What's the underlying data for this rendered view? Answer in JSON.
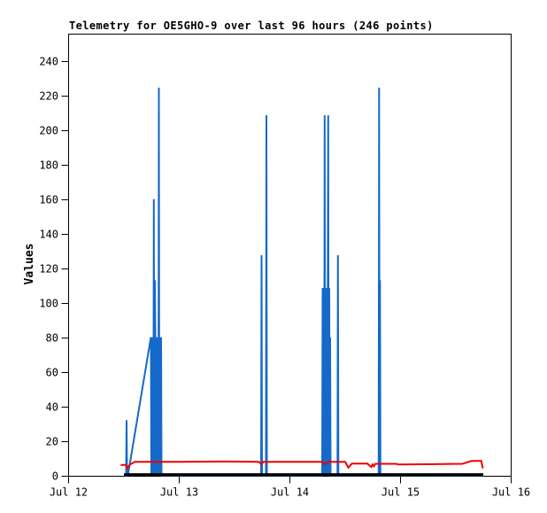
{
  "title": "Telemetry for OE5GHO-9 over last 96 hours (246 points)",
  "y_axis_label": "Values",
  "colors": {
    "background": "#ffffff",
    "border": "#000000",
    "series_blue": "#1569c8",
    "series_red": "#ee0000",
    "series_black": "#000000"
  },
  "chart_data": {
    "type": "line",
    "title": "Telemetry for OE5GHO-9 over last 96 hours (246 points)",
    "xlabel": "",
    "ylabel": "Values",
    "grid": false,
    "legend": "none",
    "xlim": [
      0,
      4
    ],
    "ylim": [
      0,
      256
    ],
    "x_unit": "days since Jul 12 00:00 (one tick per day)",
    "x_tick_positions": [
      0,
      1,
      2,
      3,
      4
    ],
    "x_tick_labels": [
      "Jul 12",
      "Jul 13",
      "Jul 14",
      "Jul 15",
      "Jul 16"
    ],
    "y_ticks": [
      0,
      20,
      40,
      60,
      80,
      100,
      120,
      140,
      160,
      180,
      200,
      220,
      240
    ],
    "series": [
      {
        "name": "channel-blue",
        "color": "#1569c8",
        "stroke_width": 2,
        "points": [
          [
            0.5,
            0.5
          ],
          [
            0.516,
            0.5
          ],
          [
            0.52,
            0.5
          ],
          [
            0.524,
            32.5
          ],
          [
            0.528,
            0.5
          ],
          [
            0.54,
            2
          ],
          [
            0.744,
            80.5
          ],
          [
            0.748,
            0.5
          ],
          [
            0.752,
            80.5
          ],
          [
            0.756,
            0.5
          ],
          [
            0.762,
            80.5
          ],
          [
            0.766,
            0.5
          ],
          [
            0.77,
            160.5
          ],
          [
            0.774,
            0.5
          ],
          [
            0.778,
            80.5
          ],
          [
            0.78,
            113.5
          ],
          [
            0.784,
            80.5
          ],
          [
            0.788,
            0.5
          ],
          [
            0.8,
            80.5
          ],
          [
            0.804,
            0.5
          ],
          [
            0.808,
            80.5
          ],
          [
            0.812,
            0.5
          ],
          [
            0.816,
            225
          ],
          [
            0.82,
            0.5
          ],
          [
            0.826,
            80.5
          ],
          [
            0.83,
            0.5
          ],
          [
            0.836,
            80.5
          ],
          [
            0.84,
            0.5
          ],
          [
            0.844,
            0.5
          ],
          [
            1.1,
            0.5
          ],
          [
            1.6,
            0.5
          ],
          [
            1.74,
            0.5
          ],
          [
            1.744,
            128
          ],
          [
            1.748,
            0.5
          ],
          [
            1.784,
            0.5
          ],
          [
            1.788,
            209
          ],
          [
            1.792,
            0.5
          ],
          [
            2.28,
            0.5
          ],
          [
            2.292,
            0.5
          ],
          [
            2.296,
            109
          ],
          [
            2.3,
            0.5
          ],
          [
            2.306,
            109
          ],
          [
            2.31,
            0.5
          ],
          [
            2.314,
            209
          ],
          [
            2.318,
            0.5
          ],
          [
            2.324,
            109
          ],
          [
            2.328,
            0.5
          ],
          [
            2.334,
            109
          ],
          [
            2.338,
            0.5
          ],
          [
            2.346,
            209
          ],
          [
            2.35,
            0.5
          ],
          [
            2.356,
            109
          ],
          [
            2.36,
            0.5
          ],
          [
            2.364,
            80.5
          ],
          [
            2.368,
            0.5
          ],
          [
            2.43,
            0.5
          ],
          [
            2.434,
            128
          ],
          [
            2.438,
            0.5
          ],
          [
            2.802,
            0.5
          ],
          [
            2.806,
            225
          ],
          [
            2.81,
            0.5
          ],
          [
            2.814,
            113.5
          ],
          [
            2.818,
            0.5
          ],
          [
            3.2,
            0.5
          ],
          [
            3.748,
            0.5
          ]
        ]
      },
      {
        "name": "channel-red",
        "color": "#ee0000",
        "stroke_width": 2,
        "points": [
          [
            0.47,
            6.5
          ],
          [
            0.516,
            6.5
          ],
          [
            0.532,
            4.5
          ],
          [
            0.544,
            6.0
          ],
          [
            0.56,
            7.0
          ],
          [
            0.6,
            8.3
          ],
          [
            1.0,
            8.3
          ],
          [
            1.4,
            8.5
          ],
          [
            1.72,
            8.3
          ],
          [
            1.744,
            6.8
          ],
          [
            1.76,
            8.3
          ],
          [
            2.0,
            8.3
          ],
          [
            2.29,
            8.3
          ],
          [
            2.316,
            7.0
          ],
          [
            2.35,
            8.3
          ],
          [
            2.5,
            8.3
          ],
          [
            2.528,
            5.0
          ],
          [
            2.56,
            7.3
          ],
          [
            2.7,
            7.3
          ],
          [
            2.736,
            5.3
          ],
          [
            2.748,
            6.8
          ],
          [
            2.76,
            5.8
          ],
          [
            2.772,
            7.2
          ],
          [
            2.96,
            7.2
          ],
          [
            2.98,
            6.8
          ],
          [
            3.3,
            7.0
          ],
          [
            3.56,
            7.2
          ],
          [
            3.64,
            8.8
          ],
          [
            3.73,
            8.8
          ],
          [
            3.744,
            4.5
          ]
        ]
      },
      {
        "name": "channel-black",
        "color": "#000000",
        "stroke_width": 3,
        "points": [
          [
            0.5,
            1.0
          ],
          [
            3.748,
            1.0
          ]
        ]
      }
    ]
  }
}
